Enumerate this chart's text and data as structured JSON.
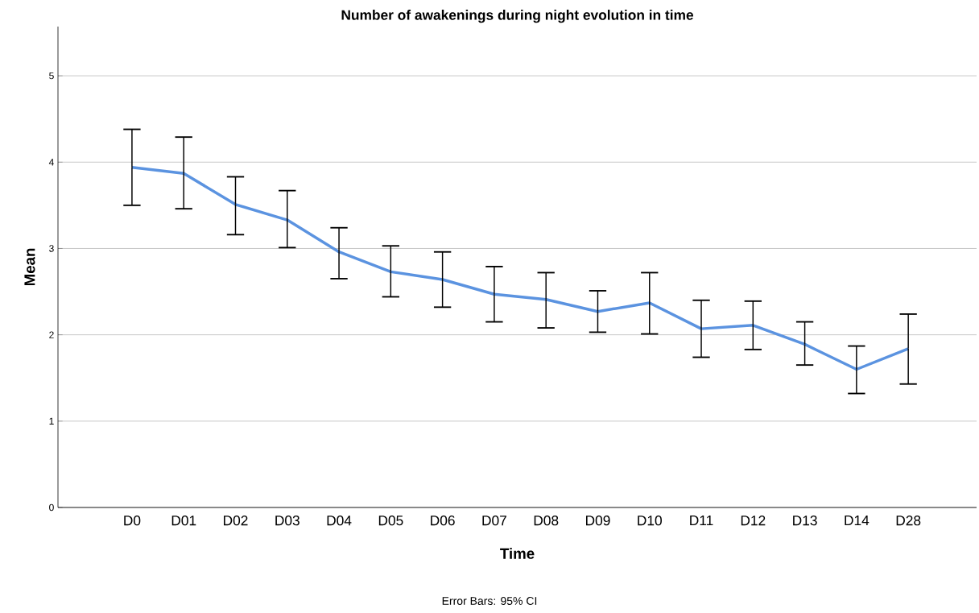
{
  "chart_data": {
    "type": "line",
    "title": "Number of awakenings during night evolution in time",
    "xlabel": "Time",
    "ylabel": "Mean",
    "categories": [
      "D0",
      "D01",
      "D02",
      "D03",
      "D04",
      "D05",
      "D06",
      "D07",
      "D08",
      "D09",
      "D10",
      "D11",
      "D12",
      "D13",
      "D14",
      "D28"
    ],
    "values": [
      3.94,
      3.87,
      3.51,
      3.33,
      2.96,
      2.73,
      2.64,
      2.47,
      2.41,
      2.27,
      2.37,
      2.07,
      2.11,
      1.89,
      1.6,
      1.84
    ],
    "errors": [
      [
        3.5,
        4.38
      ],
      [
        3.46,
        4.29
      ],
      [
        3.16,
        3.83
      ],
      [
        3.01,
        3.67
      ],
      [
        2.65,
        3.24
      ],
      [
        2.44,
        3.03
      ],
      [
        2.32,
        2.96
      ],
      [
        2.15,
        2.79
      ],
      [
        2.08,
        2.72
      ],
      [
        2.03,
        2.51
      ],
      [
        2.01,
        2.72
      ],
      [
        1.74,
        2.4
      ],
      [
        1.83,
        2.39
      ],
      [
        1.65,
        2.15
      ],
      [
        1.32,
        1.87
      ],
      [
        1.43,
        2.24
      ]
    ],
    "color": "#5b93e0",
    "ylim": [
      0,
      5.57
    ],
    "yticks": [
      0,
      1,
      2,
      3,
      4,
      5
    ],
    "grid": "y",
    "marker": "none",
    "line_style": "solid",
    "annotations": [
      "Error Bars: 95% CI"
    ]
  }
}
